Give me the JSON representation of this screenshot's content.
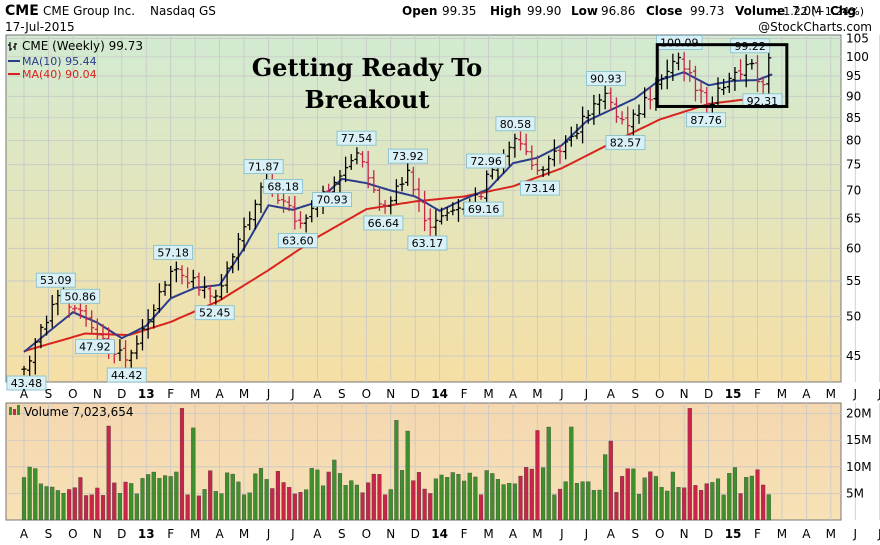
{
  "header": {
    "symbol": "CME",
    "company": "CME Group Inc.",
    "exchange": "Nasdaq GS",
    "date": "17-Jul-2015",
    "open_label": "Open",
    "open": "99.35",
    "high_label": "High",
    "high": "99.90",
    "low_label": "Low",
    "low": "96.86",
    "close_label": "Close",
    "close": "99.73",
    "volume_label": "Volume",
    "volume": "7.0M",
    "chg_label": "Chg",
    "chg": "+1.22 (+1.24%)",
    "watermark": "@StockCharts.com"
  },
  "headline": [
    "Getting Ready To",
    "Breakout"
  ],
  "legend": {
    "price": "CME (Weekly) 99.73",
    "ma10": "MA(10) 95.44",
    "ma40": "MA(40) 90.04",
    "volume": "Volume 7,023,654"
  },
  "colors": {
    "up": "#3f8f2f",
    "down": "#c8254a",
    "ma10": "#2a3c8c",
    "ma40": "#d8241e",
    "price_bg_top": "#d2ebd2",
    "price_bg_bottom": "#f6dfa5",
    "volume_bg": "#f6dcae",
    "label_box": "#d9f1f6"
  },
  "chart_data": [
    {
      "type": "ohlc",
      "title": "CME (Weekly) 99.73",
      "scale": "log",
      "ylim": [
        42,
        106
      ],
      "yticks": [
        45,
        50,
        55,
        60,
        65,
        70,
        75,
        80,
        85,
        90,
        95,
        100,
        105
      ],
      "x_months": [
        "A",
        "S",
        "O",
        "N",
        "D",
        "13",
        "F",
        "M",
        "A",
        "M",
        "J",
        "J",
        "A",
        "S",
        "O",
        "N",
        "D",
        "14",
        "F",
        "M",
        "A",
        "M",
        "J",
        "J",
        "A",
        "S",
        "O",
        "N",
        "D",
        "15",
        "F",
        "M",
        "A",
        "M",
        "J",
        "J"
      ],
      "weekly_close_anchors": [
        {
          "month": 0.1,
          "value": 43.48
        },
        {
          "month": 1.3,
          "value": 53.09
        },
        {
          "month": 2.3,
          "value": 50.86
        },
        {
          "month": 2.9,
          "value": 47.92
        },
        {
          "month": 4.2,
          "value": 44.42
        },
        {
          "month": 6.1,
          "value": 57.18
        },
        {
          "month": 7.8,
          "value": 52.45
        },
        {
          "month": 9.8,
          "value": 71.87
        },
        {
          "month": 10.6,
          "value": 68.18
        },
        {
          "month": 11.2,
          "value": 63.6
        },
        {
          "month": 12.6,
          "value": 70.93
        },
        {
          "month": 13.6,
          "value": 77.54
        },
        {
          "month": 14.7,
          "value": 66.64
        },
        {
          "month": 15.7,
          "value": 73.92
        },
        {
          "month": 16.5,
          "value": 63.17
        },
        {
          "month": 18.8,
          "value": 69.16
        },
        {
          "month": 18.9,
          "value": 72.96
        },
        {
          "month": 20.1,
          "value": 80.58
        },
        {
          "month": 21.1,
          "value": 73.14
        },
        {
          "month": 23.8,
          "value": 90.93
        },
        {
          "month": 24.6,
          "value": 82.57
        },
        {
          "month": 26.8,
          "value": 100.09
        },
        {
          "month": 27.9,
          "value": 87.76
        },
        {
          "month": 29.7,
          "value": 99.22
        },
        {
          "month": 30.2,
          "value": 92.31
        },
        {
          "month": 30.6,
          "value": 99.73
        }
      ],
      "labels": [
        {
          "text": "43.48",
          "month": 0.1,
          "value": 43.48,
          "pos": "below"
        },
        {
          "text": "53.09",
          "month": 1.3,
          "value": 53.09,
          "pos": "above"
        },
        {
          "text": "50.86",
          "month": 2.3,
          "value": 50.86,
          "pos": "above"
        },
        {
          "text": "47.92",
          "month": 2.9,
          "value": 47.92,
          "pos": "below"
        },
        {
          "text": "44.42",
          "month": 4.2,
          "value": 44.42,
          "pos": "below"
        },
        {
          "text": "57.18",
          "month": 6.1,
          "value": 57.18,
          "pos": "above"
        },
        {
          "text": "52.45",
          "month": 7.8,
          "value": 52.45,
          "pos": "below"
        },
        {
          "text": "71.87",
          "month": 9.8,
          "value": 71.87,
          "pos": "above"
        },
        {
          "text": "68.18",
          "month": 10.6,
          "value": 68.18,
          "pos": "above"
        },
        {
          "text": "63.60",
          "month": 11.2,
          "value": 63.6,
          "pos": "below"
        },
        {
          "text": "70.93",
          "month": 12.6,
          "value": 70.93,
          "pos": "below"
        },
        {
          "text": "77.54",
          "month": 13.6,
          "value": 77.54,
          "pos": "above"
        },
        {
          "text": "66.64",
          "month": 14.7,
          "value": 66.64,
          "pos": "below"
        },
        {
          "text": "73.92",
          "month": 15.7,
          "value": 73.92,
          "pos": "above"
        },
        {
          "text": "63.17",
          "month": 16.5,
          "value": 63.17,
          "pos": "below"
        },
        {
          "text": "72.96",
          "month": 18.9,
          "value": 72.96,
          "pos": "above"
        },
        {
          "text": "69.16",
          "month": 18.8,
          "value": 69.16,
          "pos": "below"
        },
        {
          "text": "80.58",
          "month": 20.1,
          "value": 80.58,
          "pos": "above"
        },
        {
          "text": "73.14",
          "month": 21.1,
          "value": 73.14,
          "pos": "below"
        },
        {
          "text": "90.93",
          "month": 23.8,
          "value": 90.93,
          "pos": "above"
        },
        {
          "text": "82.57",
          "month": 24.6,
          "value": 82.57,
          "pos": "below"
        },
        {
          "text": "100.09",
          "month": 26.8,
          "value": 100.09,
          "pos": "above"
        },
        {
          "text": "87.76",
          "month": 27.9,
          "value": 87.76,
          "pos": "below"
        },
        {
          "text": "99.22",
          "month": 29.7,
          "value": 99.22,
          "pos": "above"
        },
        {
          "text": "92.31",
          "month": 30.2,
          "value": 92.31,
          "pos": "below"
        }
      ],
      "series": [
        {
          "name": "MA(10) 95.44"
        },
        {
          "name": "MA(40) 90.04"
        }
      ],
      "ma40_anchors": [
        {
          "month": 0.0,
          "value": 45.6
        },
        {
          "month": 2.5,
          "value": 47.8
        },
        {
          "month": 4.3,
          "value": 47.6
        },
        {
          "month": 6.0,
          "value": 49.3
        },
        {
          "month": 8.0,
          "value": 52.2
        },
        {
          "month": 10.0,
          "value": 56.6
        },
        {
          "month": 12.0,
          "value": 61.8
        },
        {
          "month": 14.0,
          "value": 66.6
        },
        {
          "month": 16.0,
          "value": 68.0
        },
        {
          "month": 18.0,
          "value": 68.9
        },
        {
          "month": 20.0,
          "value": 70.8
        },
        {
          "month": 22.0,
          "value": 74.3
        },
        {
          "month": 24.0,
          "value": 79.4
        },
        {
          "month": 26.0,
          "value": 84.6
        },
        {
          "month": 28.0,
          "value": 88.2
        },
        {
          "month": 30.6,
          "value": 90.04
        }
      ],
      "ma10_anchors": [
        {
          "month": 0.0,
          "value": 45.5
        },
        {
          "month": 1.0,
          "value": 48.0
        },
        {
          "month": 2.0,
          "value": 50.6
        },
        {
          "month": 3.0,
          "value": 49.2
        },
        {
          "month": 4.0,
          "value": 47.2
        },
        {
          "month": 5.0,
          "value": 48.8
        },
        {
          "month": 6.0,
          "value": 52.5
        },
        {
          "month": 7.0,
          "value": 54.0
        },
        {
          "month": 8.0,
          "value": 54.4
        },
        {
          "month": 9.0,
          "value": 60.0
        },
        {
          "month": 10.0,
          "value": 67.3
        },
        {
          "month": 11.0,
          "value": 66.5
        },
        {
          "month": 12.0,
          "value": 67.9
        },
        {
          "month": 13.0,
          "value": 72.2
        },
        {
          "month": 14.0,
          "value": 71.4
        },
        {
          "month": 15.0,
          "value": 70.0
        },
        {
          "month": 16.0,
          "value": 68.9
        },
        {
          "month": 17.0,
          "value": 66.3
        },
        {
          "month": 18.0,
          "value": 68.4
        },
        {
          "month": 19.0,
          "value": 70.3
        },
        {
          "month": 20.0,
          "value": 75.3
        },
        {
          "month": 21.0,
          "value": 76.4
        },
        {
          "month": 22.0,
          "value": 79.0
        },
        {
          "month": 23.0,
          "value": 84.2
        },
        {
          "month": 24.0,
          "value": 86.8
        },
        {
          "month": 25.0,
          "value": 89.5
        },
        {
          "month": 26.0,
          "value": 94.0
        },
        {
          "month": 27.0,
          "value": 96.0
        },
        {
          "month": 28.0,
          "value": 92.7
        },
        {
          "month": 29.0,
          "value": 93.8
        },
        {
          "month": 30.0,
          "value": 94.0
        },
        {
          "month": 30.6,
          "value": 95.44
        }
      ],
      "highlight_box": {
        "month_range": [
          25.9,
          31.2
        ],
        "value_range": [
          87.6,
          103.3
        ]
      }
    },
    {
      "type": "bar",
      "title": "Volume 7,023,654",
      "ylim": [
        0,
        22000000
      ],
      "yticks": [
        5000000,
        10000000,
        15000000,
        20000000
      ],
      "ytick_labels": [
        "5M",
        "10M",
        "15M",
        "20M"
      ],
      "unit": "shares/week",
      "x_months": [
        "A",
        "S",
        "O",
        "N",
        "D",
        "13",
        "F",
        "M",
        "A",
        "M",
        "J",
        "J",
        "A",
        "S",
        "O",
        "N",
        "D",
        "14",
        "F",
        "M",
        "A",
        "M",
        "J",
        "J",
        "A",
        "S",
        "O",
        "N",
        "D",
        "15",
        "F",
        "M",
        "A",
        "M",
        "J",
        "J"
      ]
    }
  ]
}
